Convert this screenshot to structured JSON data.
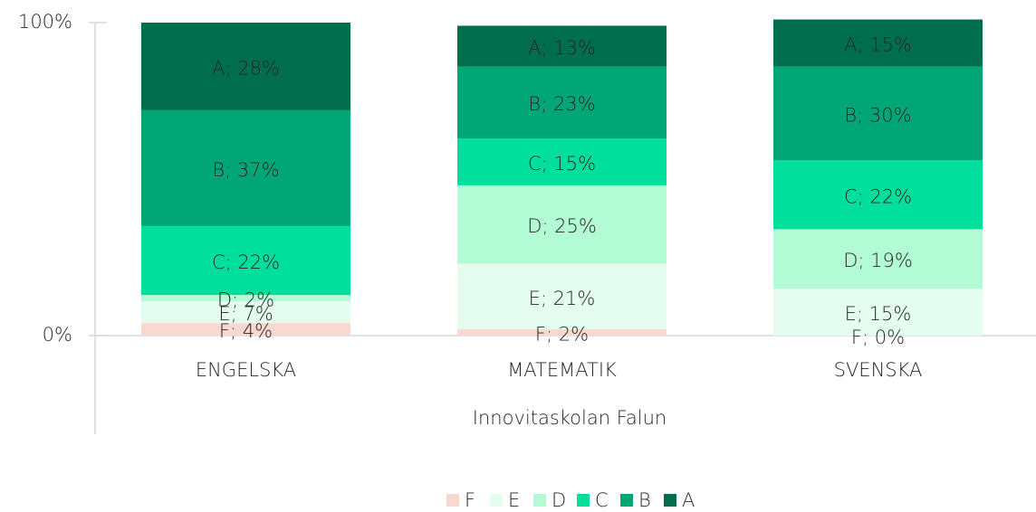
{
  "chart_data": {
    "type": "stacked_bar",
    "x_label": "Innovitaskolan Falun",
    "categories": [
      "ENGELSKA",
      "MATEMATIK",
      "SVENSKA"
    ],
    "series": [
      {
        "name": "F",
        "color": "#f8d8cf",
        "values": [
          4,
          2,
          0
        ],
        "value_labels": [
          "F; 4%",
          "F; 2%",
          "F; 0%"
        ]
      },
      {
        "name": "E",
        "color": "#e4fdf0",
        "values": [
          7,
          21,
          15
        ],
        "value_labels": [
          "E; 7%",
          "E; 21%",
          "E; 15%"
        ]
      },
      {
        "name": "D",
        "color": "#b2fbd5",
        "values": [
          2,
          25,
          19
        ],
        "value_labels": [
          "D; 2%",
          "D; 25%",
          "D; 19%"
        ]
      },
      {
        "name": "C",
        "color": "#00e09c",
        "values": [
          22,
          15,
          22
        ],
        "value_labels": [
          "C; 22%",
          "C; 15%",
          "C; 22%"
        ]
      },
      {
        "name": "B",
        "color": "#00a676",
        "values": [
          37,
          23,
          30
        ],
        "value_labels": [
          "B; 37%",
          "B; 23%",
          "B; 30%"
        ]
      },
      {
        "name": "A",
        "color": "#006e4c",
        "values": [
          28,
          13,
          15
        ],
        "value_labels": [
          "A; 28%",
          "A; 13%",
          "A; 15%"
        ]
      }
    ],
    "ylim": [
      0,
      100
    ],
    "yticks": [
      {
        "value": 0,
        "label": "0%"
      },
      {
        "value": 100,
        "label": "100%"
      }
    ],
    "grid": false,
    "legend": "bottom"
  }
}
